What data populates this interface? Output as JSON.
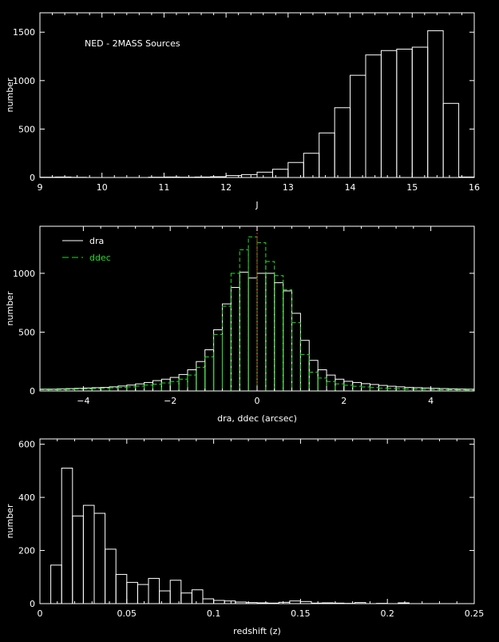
{
  "chart_data": [
    {
      "type": "bar",
      "subtype": "histogram",
      "annotation": "NED - 2MASS Sources",
      "xlabel": "J",
      "ylabel": "number",
      "xlim": [
        9,
        16
      ],
      "ylim": [
        0,
        1700
      ],
      "xticks": [
        9,
        10,
        11,
        12,
        13,
        14,
        15,
        16
      ],
      "yticks": [
        0,
        500,
        1000,
        1500
      ],
      "grid": false,
      "bin_width": 0.25,
      "bin_start": 9.0,
      "values": [
        3,
        5,
        2,
        0,
        0,
        0,
        0,
        3,
        5,
        3,
        5,
        8,
        20,
        30,
        55,
        85,
        155,
        250,
        460,
        720,
        1055,
        1265,
        1310,
        1325,
        1345,
        1515,
        765,
        5
      ],
      "color": "#ffffff"
    },
    {
      "type": "bar",
      "subtype": "histogram",
      "xlabel": "dra, ddec (arcsec)",
      "ylabel": "number",
      "xlim": [
        -5,
        5
      ],
      "ylim": [
        0,
        1400
      ],
      "xticks": [
        -4,
        -2,
        0,
        2,
        4
      ],
      "yticks": [
        0,
        500,
        1000
      ],
      "grid": false,
      "legend_position": "top-left",
      "bin_width": 0.2,
      "bin_start": -5.0,
      "reference_line": {
        "x": 0,
        "color": "#cc2222",
        "style": "dotted"
      },
      "series": [
        {
          "name": "dra",
          "color": "#ffffff",
          "line_style": "solid",
          "values": [
            15,
            15,
            18,
            20,
            22,
            25,
            28,
            30,
            35,
            42,
            50,
            60,
            72,
            88,
            100,
            115,
            140,
            180,
            250,
            350,
            520,
            740,
            880,
            1010,
            960,
            1000,
            1000,
            920,
            850,
            660,
            430,
            260,
            180,
            135,
            100,
            82,
            72,
            62,
            55,
            47,
            40,
            35,
            30,
            28,
            25,
            22,
            20,
            18,
            16,
            15
          ]
        },
        {
          "name": "ddec",
          "color": "#22dd22",
          "line_style": "dashed",
          "values": [
            10,
            10,
            12,
            14,
            16,
            18,
            20,
            22,
            26,
            30,
            35,
            42,
            50,
            58,
            68,
            80,
            100,
            135,
            200,
            290,
            480,
            720,
            1000,
            1200,
            1310,
            1260,
            1100,
            980,
            860,
            580,
            310,
            160,
            110,
            80,
            60,
            48,
            40,
            34,
            29,
            25,
            22,
            19,
            17,
            15,
            13,
            12,
            11,
            10,
            9,
            8
          ]
        }
      ]
    },
    {
      "type": "bar",
      "subtype": "histogram",
      "xlabel": "redshift (z)",
      "ylabel": "number",
      "xlim": [
        0,
        0.25
      ],
      "ylim": [
        0,
        620
      ],
      "xticks": [
        0,
        0.05,
        0.1,
        0.15,
        0.2,
        0.25
      ],
      "xtick_labels": [
        "0",
        "0.05",
        "0.1",
        "0.15",
        "0.2",
        "0.25"
      ],
      "yticks": [
        0,
        200,
        400,
        600
      ],
      "grid": false,
      "bin_width": 0.00625,
      "bin_start": 0.00625,
      "values": [
        145,
        510,
        330,
        370,
        340,
        205,
        110,
        80,
        72,
        95,
        48,
        88,
        40,
        52,
        18,
        12,
        10,
        6,
        4,
        3,
        2,
        5,
        10,
        8,
        2,
        3,
        2,
        1,
        4,
        0,
        1,
        0,
        3
      ],
      "color": "#ffffff"
    }
  ]
}
